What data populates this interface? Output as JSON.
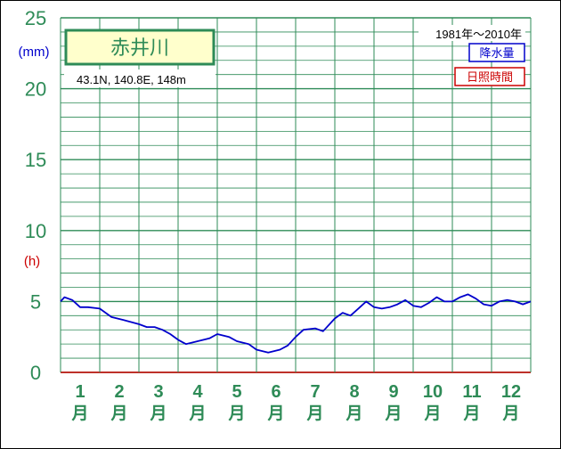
{
  "chart_data": {
    "type": "line",
    "title": "赤井川",
    "location": "43.1N,  140.8E,  148m",
    "period": "1981年〜2010年",
    "y_unit_precip": "(mm)",
    "y_unit_sunshine": "(h)",
    "ylim": [
      0,
      25
    ],
    "yticks": [
      "0",
      "5",
      "10",
      "15",
      "20",
      "25"
    ],
    "months": [
      "1",
      "2",
      "3",
      "4",
      "5",
      "6",
      "7",
      "8",
      "9",
      "10",
      "11",
      "12"
    ],
    "month_suffix": "月",
    "legend": [
      "降水量",
      "日照時間"
    ],
    "series": [
      {
        "name": "降水量",
        "color": "#0000cc",
        "x": [
          1.0,
          1.1,
          1.3,
          1.5,
          1.7,
          2.0,
          2.3,
          2.6,
          3.0,
          3.2,
          3.4,
          3.6,
          3.8,
          4.0,
          4.2,
          4.5,
          4.8,
          5.0,
          5.3,
          5.5,
          5.8,
          6.0,
          6.3,
          6.6,
          6.8,
          7.0,
          7.2,
          7.5,
          7.7,
          8.0,
          8.2,
          8.4,
          8.6,
          8.8,
          9.0,
          9.2,
          9.4,
          9.6,
          9.8,
          10.0,
          10.2,
          10.4,
          10.6,
          10.8,
          11.0,
          11.2,
          11.4,
          11.6,
          11.8,
          12.0,
          12.2,
          12.4,
          12.6,
          12.8,
          13.0
        ],
        "values": [
          5.0,
          5.3,
          5.1,
          4.6,
          4.6,
          4.5,
          3.9,
          3.7,
          3.4,
          3.2,
          3.2,
          3.0,
          2.7,
          2.3,
          2.0,
          2.2,
          2.4,
          2.7,
          2.5,
          2.2,
          2.0,
          1.6,
          1.4,
          1.6,
          1.9,
          2.5,
          3.0,
          3.1,
          2.9,
          3.8,
          4.2,
          4.0,
          4.5,
          5.0,
          4.6,
          4.5,
          4.6,
          4.8,
          5.1,
          4.7,
          4.6,
          4.9,
          5.3,
          5.0,
          5.0,
          5.3,
          5.5,
          5.2,
          4.8,
          4.7,
          5.0,
          5.1,
          5.0,
          4.8,
          5.0
        ]
      }
    ]
  },
  "colors": {
    "grid": "#2e8b57",
    "axis_text": "#2e8b57",
    "precip": "#0000cc",
    "sunshine": "#cc0000",
    "title_bg": "#ffffcc",
    "title_border": "#2e8b57"
  }
}
